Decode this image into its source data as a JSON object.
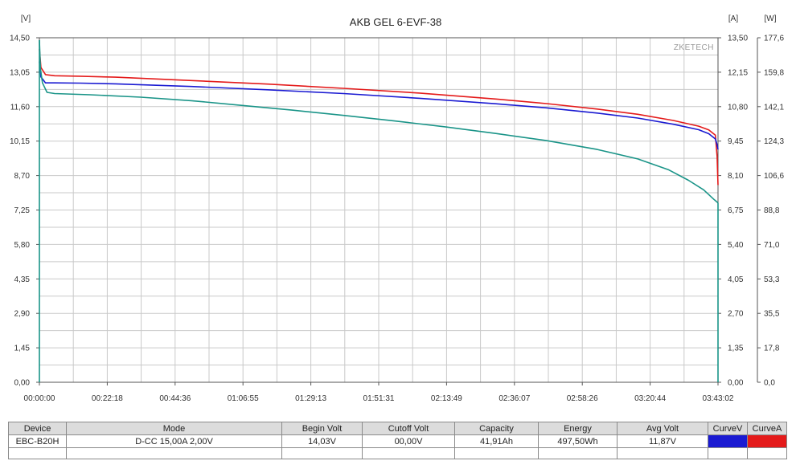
{
  "chart_data": {
    "type": "line",
    "title": "AKB GEL  6-EVF-38",
    "watermark": "ZKETECH",
    "x_ticks": [
      "00:00:00",
      "00:22:18",
      "00:44:36",
      "01:06:55",
      "01:29:13",
      "01:51:31",
      "02:13:49",
      "02:36:07",
      "02:58:26",
      "03:20:44",
      "03:43:02"
    ],
    "x_range_seconds": [
      0,
      13382
    ],
    "grid": true,
    "axes": {
      "left": {
        "unit": "[V]",
        "min": 0,
        "max": 14.5,
        "ticks": [
          "0,00",
          "1,45",
          "2,90",
          "4,35",
          "5,80",
          "7,25",
          "8,70",
          "10,15",
          "11,60",
          "13,05",
          "14,50"
        ]
      },
      "right1": {
        "unit": "[A]",
        "min": 0,
        "max": 13.5,
        "ticks": [
          "0,00",
          "1,35",
          "2,70",
          "4,05",
          "5,40",
          "6,75",
          "8,10",
          "9,45",
          "10,80",
          "12,15",
          "13,50"
        ]
      },
      "right2": {
        "unit": "[W]",
        "min": 0,
        "max": 177.6,
        "ticks": [
          "0,0",
          "17,8",
          "35,5",
          "53,3",
          "71,0",
          "88,8",
          "106,6",
          "124,3",
          "142,1",
          "159,8",
          "177,6"
        ]
      }
    },
    "series": [
      {
        "color": "#e41a1a",
        "axis": "left",
        "x": [
          0,
          30,
          120,
          300,
          800,
          1500,
          3000,
          4500,
          6000,
          7500,
          9000,
          10000,
          11000,
          11800,
          12500,
          13000,
          13200,
          13330,
          13365,
          13382
        ],
        "y": [
          14.03,
          13.25,
          12.95,
          12.9,
          12.88,
          12.84,
          12.7,
          12.55,
          12.37,
          12.17,
          11.92,
          11.73,
          11.5,
          11.28,
          11.02,
          10.78,
          10.62,
          10.4,
          9.5,
          8.3
        ]
      },
      {
        "color": "#1a1ad2",
        "axis": "left",
        "x": [
          0,
          30,
          120,
          300,
          800,
          1500,
          3000,
          4500,
          6000,
          7500,
          9000,
          10000,
          11000,
          11800,
          12500,
          13000,
          13200,
          13330,
          13365,
          13382
        ],
        "y": [
          13.5,
          12.85,
          12.6,
          12.6,
          12.59,
          12.56,
          12.45,
          12.31,
          12.15,
          11.95,
          11.72,
          11.55,
          11.33,
          11.12,
          10.86,
          10.63,
          10.46,
          10.24,
          10.0,
          9.8
        ]
      },
      {
        "color": "#1a9488",
        "axis": "left",
        "x": [
          0,
          20,
          60,
          150,
          300,
          1000,
          2000,
          3000,
          4000,
          5000,
          6000,
          7000,
          8000,
          9000,
          10000,
          11000,
          11800,
          12400,
          12800,
          13100,
          13300,
          13382
        ],
        "y": [
          14.4,
          13.2,
          12.6,
          12.2,
          12.15,
          12.1,
          12.0,
          11.85,
          11.65,
          11.45,
          11.23,
          11.0,
          10.75,
          10.47,
          10.17,
          9.8,
          9.4,
          8.95,
          8.5,
          8.1,
          7.7,
          7.55
        ]
      }
    ]
  },
  "table": {
    "headers": [
      "Device",
      "Mode",
      "Begin Volt",
      "Cutoff Volt",
      "Capacity",
      "Energy",
      "Avg Volt",
      "CurveV",
      "CurveA"
    ],
    "row": [
      "EBC-B20H",
      "D-CC  15,00A  2,00V",
      "14,03V",
      "00,00V",
      "41,91Ah",
      "497,50Wh",
      "11,87V"
    ],
    "curve_colors": [
      "#1a1ad2",
      "#e41a1a"
    ]
  }
}
